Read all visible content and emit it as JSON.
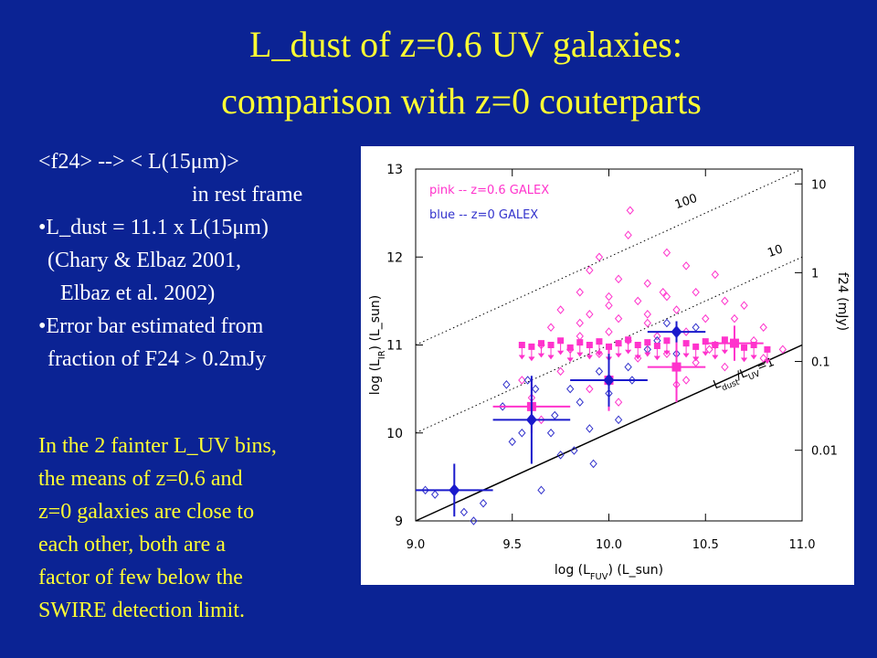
{
  "slide": {
    "title": [
      "L_dust of z=0.6 UV galaxies:",
      "comparison with z=0 couterparts"
    ],
    "notes": [
      "<f24> -->   < L(15μm)>",
      "in rest frame",
      "•L_dust = 11.1 x L(15μm)",
      "(Chary & Elbaz 2001,",
      "Elbaz et al. 2002)",
      "•Error bar estimated from",
      "fraction of F24 > 0.2mJy"
    ],
    "conclusion": [
      "In the 2 fainter L_UV bins,",
      "the means of z=0.6 and",
      "z=0 galaxies are close to",
      "each other, both are a",
      "factor of few below the",
      "SWIRE detection limit."
    ]
  },
  "chart_data": {
    "type": "scatter",
    "xlabel": [
      "log (L",
      "FUV",
      ") (L_sun)"
    ],
    "ylabel": [
      "log (L",
      "IR",
      ") (L_sun)"
    ],
    "y2label": "f24 (mJy)",
    "xlim": [
      9.0,
      11.0
    ],
    "ylim": [
      9,
      13
    ],
    "xticks": [
      {
        "value": 9.0,
        "label": "9.0"
      },
      {
        "value": 9.5,
        "label": "9.5"
      },
      {
        "value": 10.0,
        "label": "10.0"
      },
      {
        "value": 10.5,
        "label": "10.5"
      },
      {
        "value": 11.0,
        "label": "11.0"
      }
    ],
    "yticks": [
      9,
      10,
      11,
      12,
      13
    ],
    "y2lim": [
      0.0016,
      14.7
    ],
    "y2_log": true,
    "y2ticks": [
      10,
      1,
      0.1,
      0.01
    ],
    "series": [
      {
        "name": "pink -- z=0.6 GALEX",
        "color": "#ff33cc",
        "marker": "open-diamond",
        "x": [
          10.11,
          10.1,
          9.95,
          10.3,
          10.4,
          9.9,
          10.05,
          10.2,
          10.55,
          9.85,
          10.0,
          10.15,
          10.3,
          10.45,
          10.6,
          9.75,
          9.9,
          10.05,
          10.2,
          10.35,
          10.5,
          10.65,
          10.8,
          9.7,
          9.85,
          10.0,
          10.1,
          10.25,
          10.4,
          10.55,
          10.75,
          10.9,
          9.65,
          9.8,
          9.95,
          10.15,
          10.3,
          10.45,
          10.6,
          9.75,
          9.6,
          9.65,
          9.9,
          10.05,
          10.35,
          9.55,
          10.2,
          10.0,
          9.85,
          10.7,
          10.8,
          10.52,
          10.4,
          10.28
        ],
        "values": [
          12.53,
          12.25,
          12.0,
          12.05,
          11.9,
          11.85,
          11.75,
          11.7,
          11.8,
          11.6,
          11.55,
          11.5,
          11.55,
          11.6,
          11.5,
          11.4,
          11.35,
          11.3,
          11.35,
          11.4,
          11.3,
          11.3,
          11.2,
          11.2,
          11.1,
          11.15,
          11.05,
          11.1,
          11.15,
          11.0,
          11.05,
          10.95,
          11.0,
          10.95,
          10.9,
          10.85,
          10.9,
          10.8,
          10.75,
          10.7,
          10.4,
          10.15,
          10.5,
          10.35,
          10.55,
          10.6,
          11.25,
          11.45,
          11.25,
          11.45,
          10.85,
          10.95,
          10.6,
          11.6
        ]
      },
      {
        "name": "blue -- z=0 GALEX",
        "color": "#3333cc",
        "marker": "open-diamond",
        "x": [
          9.05,
          9.1,
          9.35,
          9.25,
          9.3,
          9.45,
          9.5,
          9.55,
          9.58,
          9.62,
          9.7,
          9.75,
          9.72,
          9.8,
          9.85,
          9.9,
          9.95,
          10.0,
          10.05,
          10.1,
          10.2,
          10.25,
          10.35,
          10.3,
          10.45,
          9.82,
          10.12,
          9.65,
          9.92,
          9.47
        ],
        "values": [
          9.35,
          9.3,
          9.2,
          9.1,
          9.0,
          10.3,
          9.9,
          10.0,
          10.6,
          10.5,
          10.0,
          9.75,
          10.2,
          10.5,
          10.35,
          10.05,
          10.7,
          10.45,
          10.15,
          10.75,
          10.95,
          11.05,
          10.9,
          11.25,
          11.2,
          9.8,
          10.6,
          9.35,
          9.65,
          10.55
        ]
      },
      {
        "color": "#ff33cc",
        "marker": "upper-limit",
        "x": [
          9.55,
          9.6,
          9.65,
          9.7,
          9.75,
          9.8,
          9.85,
          9.9,
          9.95,
          10.0,
          10.05,
          10.1,
          10.15,
          10.2,
          10.25,
          10.3,
          10.4,
          10.45,
          10.5,
          10.55,
          10.6,
          10.7,
          10.75,
          10.82
        ],
        "values": [
          11.0,
          10.98,
          11.02,
          11.0,
          11.05,
          10.97,
          11.03,
          11.0,
          11.04,
          10.98,
          11.02,
          11.06,
          11.0,
          11.03,
          10.99,
          11.05,
          11.02,
          10.98,
          11.04,
          11.0,
          11.06,
          10.97,
          11.0,
          10.95
        ]
      },
      {
        "color": "#ff33cc",
        "marker": "filled-square",
        "x": [
          9.6,
          10.0,
          10.35,
          10.65
        ],
        "values": [
          10.3,
          10.6,
          10.75,
          11.02
        ],
        "xerr": [
          0.2,
          0.2,
          0.15,
          0.15
        ],
        "yerr": [
          0.3,
          0.35,
          0.4,
          0.2
        ]
      },
      {
        "color": "#1a1acc",
        "marker": "filled-diamond",
        "x": [
          9.2,
          9.6,
          10.0,
          10.35
        ],
        "values": [
          9.35,
          10.15,
          10.6,
          11.15
        ],
        "xerr": [
          0.2,
          0.2,
          0.2,
          0.15
        ],
        "yerr": [
          0.3,
          0.5,
          0.3,
          0.12
        ]
      }
    ],
    "lines": [
      {
        "label": "100",
        "style": "dotted",
        "x": [
          9.0,
          11.0
        ],
        "values": [
          11.0,
          13.0
        ]
      },
      {
        "label": "10",
        "style": "dotted",
        "x": [
          9.0,
          11.0
        ],
        "values": [
          10.0,
          12.0
        ]
      },
      {
        "label": [
          "L",
          "dust",
          "/L",
          "UV",
          "=1"
        ],
        "style": "solid",
        "x": [
          9.0,
          11.0
        ],
        "values": [
          9.0,
          11.0
        ]
      }
    ]
  }
}
